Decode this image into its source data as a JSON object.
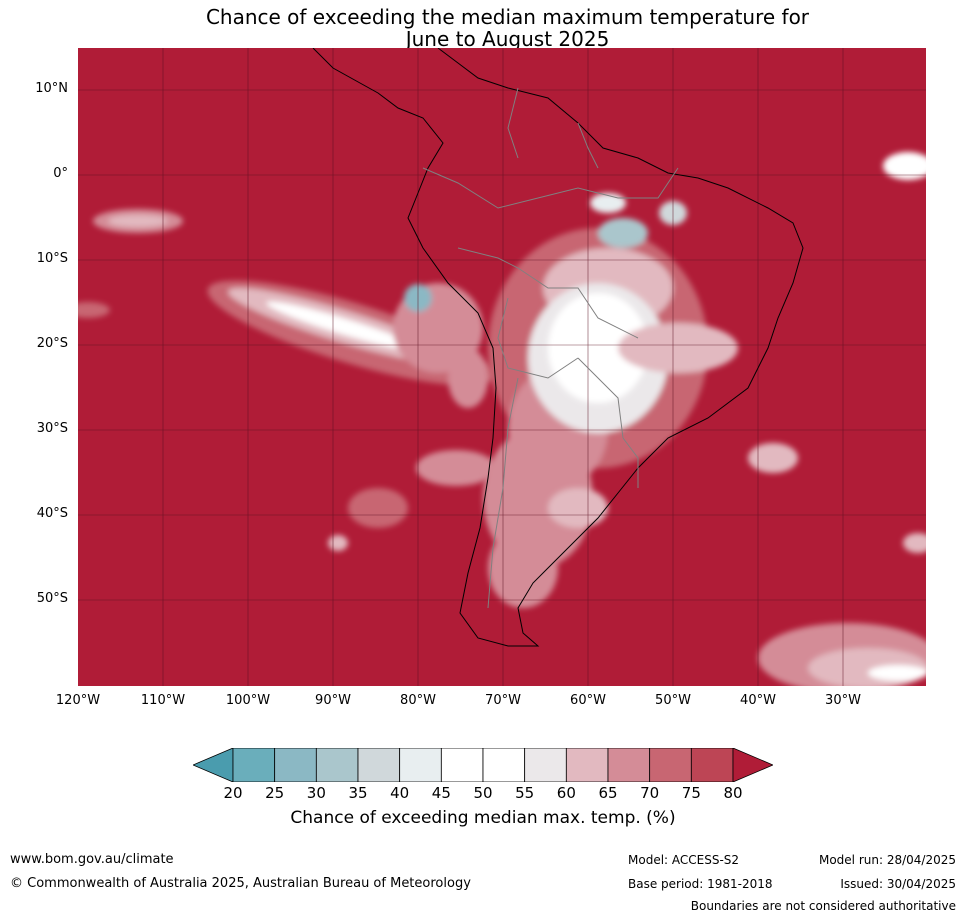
{
  "title": {
    "line1": "Chance of exceeding the median maximum temperature for",
    "line2": "June to August 2025"
  },
  "map": {
    "region": "South America",
    "lat_labels": [
      "10°N",
      "0°",
      "10°S",
      "20°S",
      "30°S",
      "40°S",
      "50°S"
    ],
    "lon_labels": [
      "120°W",
      "110°W",
      "100°W",
      "90°W",
      "80°W",
      "70°W",
      "60°W",
      "50°W",
      "40°W",
      "30°W"
    ],
    "dominant_color": "#b01c37",
    "gridline_color": "#5a1020"
  },
  "colorbar": {
    "ticks": [
      "20",
      "25",
      "30",
      "35",
      "40",
      "45",
      "50",
      "55",
      "60",
      "65",
      "70",
      "75",
      "80"
    ],
    "colors": [
      "#4a9cae",
      "#6aaebb",
      "#8bb8c4",
      "#aac6cc",
      "#d0d8db",
      "#e8eef0",
      "#ffffff",
      "#ffffff",
      "#ebe8ea",
      "#e2b9c0",
      "#d48c97",
      "#c86672",
      "#bd4555",
      "#b01c37"
    ],
    "label": "Chance of exceeding median max. temp. (%)"
  },
  "footer": {
    "website": "www.bom.gov.au/climate",
    "copyright": "© Commonwealth of Australia 2025, Australian Bureau of Meteorology",
    "model": "Model: ACCESS-S2",
    "base_period": "Base period: 1981-2018",
    "model_run": "Model run: 28/04/2025",
    "issued": "Issued: 30/04/2025",
    "disclaimer": "Boundaries are not considered authoritative"
  }
}
